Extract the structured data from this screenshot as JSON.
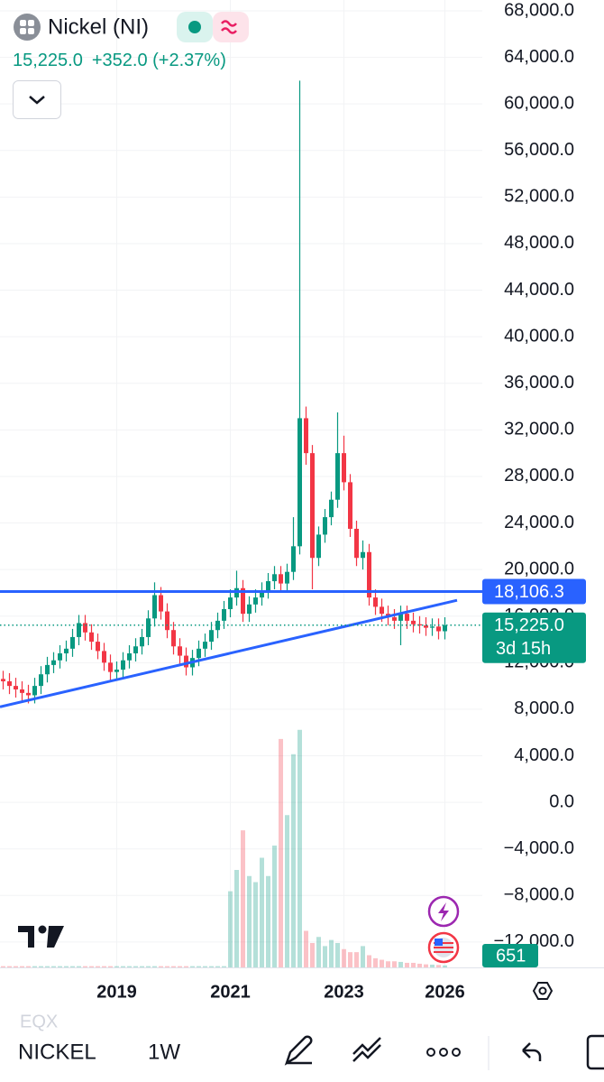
{
  "header": {
    "symbol": "Nickel (NI)",
    "last": "15,225.0",
    "change": "+352.0 (+2.37%)"
  },
  "toolbar": {
    "exchange": "EQX",
    "symbol": "NICKEL",
    "interval": "1W"
  },
  "chart_data": {
    "type": "candlestick",
    "up_color": "#089981",
    "down_color": "#f23645",
    "categories": [
      null,
      null,
      null,
      null,
      null,
      null,
      null,
      null,
      null,
      null,
      null,
      null,
      null,
      null,
      null,
      null,
      null,
      null,
      "2019",
      null,
      null,
      null,
      null,
      null,
      null,
      null,
      null,
      null,
      null,
      null,
      null,
      null,
      null,
      null,
      null,
      null,
      "2021",
      null,
      null,
      null,
      null,
      null,
      null,
      null,
      null,
      null,
      null,
      null,
      null,
      null,
      null,
      null,
      null,
      null,
      "2023",
      null,
      null,
      null,
      null,
      null,
      null,
      null,
      null,
      null,
      null,
      null,
      null,
      null,
      null,
      null,
      "2026"
    ],
    "open": [
      10600,
      10400,
      10000,
      9700,
      9400,
      9200,
      10000,
      11000,
      11800,
      12200,
      12800,
      13200,
      14200,
      15400,
      14600,
      13800,
      13000,
      12000,
      11200,
      11400,
      12200,
      12800,
      13400,
      14200,
      15800,
      17800,
      16400,
      14800,
      13400,
      12600,
      11600,
      12400,
      13200,
      13800,
      14800,
      15600,
      16600,
      17600,
      18400,
      16200,
      17000,
      17600,
      18200,
      19000,
      19600,
      18800,
      19800,
      22000,
      33000,
      30000,
      21000,
      23000,
      24500,
      26000,
      30000,
      27500,
      23500,
      21000,
      21500,
      17600,
      16800,
      16200,
      15900,
      15600,
      16200,
      15600,
      15300,
      15200,
      15000,
      15100,
      14700
    ],
    "high": [
      11300,
      11100,
      10700,
      10400,
      10100,
      10700,
      11700,
      12500,
      12900,
      13500,
      13900,
      14900,
      16100,
      16100,
      15300,
      14500,
      13700,
      12700,
      12100,
      12900,
      13500,
      14100,
      14900,
      16500,
      18900,
      18500,
      17100,
      15500,
      14100,
      13300,
      13100,
      13900,
      14500,
      15500,
      16300,
      17300,
      18300,
      19900,
      19100,
      17700,
      18300,
      18900,
      19700,
      20300,
      20300,
      20500,
      24500,
      62000,
      34000,
      30700,
      23700,
      25200,
      26700,
      33500,
      31500,
      28200,
      24200,
      22500,
      22200,
      18300,
      17500,
      16900,
      16600,
      16900,
      16900,
      16300,
      16000,
      15900,
      15800,
      15800,
      15900
    ],
    "low": [
      9700,
      9300,
      9000,
      8700,
      8500,
      8500,
      9300,
      10300,
      11100,
      11500,
      12100,
      12500,
      13500,
      13900,
      13100,
      12300,
      11300,
      10500,
      10500,
      10700,
      11500,
      12100,
      12700,
      13500,
      15100,
      15700,
      14100,
      12700,
      11900,
      10900,
      10900,
      11700,
      12500,
      13100,
      14100,
      14900,
      15900,
      16900,
      15500,
      15500,
      16300,
      16900,
      17500,
      18300,
      18100,
      18100,
      19100,
      21300,
      29000,
      18300,
      20300,
      22300,
      23800,
      25300,
      26800,
      22800,
      20300,
      20000,
      16900,
      16100,
      15500,
      15200,
      14900,
      13500,
      14900,
      14600,
      14500,
      14300,
      14300,
      14000,
      14000
    ],
    "close": [
      10400,
      10000,
      9700,
      9400,
      9200,
      10000,
      11000,
      11800,
      12200,
      12800,
      13200,
      14200,
      15400,
      14600,
      13800,
      13000,
      12000,
      11200,
      11400,
      12200,
      12800,
      13400,
      14200,
      15800,
      17800,
      16400,
      14800,
      13400,
      12600,
      11600,
      12400,
      13200,
      13800,
      14800,
      15600,
      16600,
      17600,
      18400,
      16200,
      17000,
      17600,
      18200,
      19000,
      19600,
      18800,
      19800,
      22000,
      33000,
      30000,
      21000,
      23000,
      24500,
      26000,
      30000,
      27500,
      23500,
      21000,
      21500,
      17600,
      16800,
      16200,
      15900,
      15600,
      16200,
      15600,
      15300,
      15200,
      15000,
      15100,
      14700,
      15225
    ],
    "volume": {
      "ylim": [
        0,
        80000
      ],
      "values": [
        400,
        400,
        400,
        400,
        400,
        400,
        400,
        400,
        400,
        400,
        400,
        400,
        400,
        400,
        400,
        400,
        400,
        400,
        400,
        400,
        400,
        400,
        400,
        400,
        400,
        400,
        400,
        400,
        400,
        400,
        400,
        400,
        400,
        400,
        400,
        400,
        25000,
        32000,
        45000,
        30000,
        28000,
        36000,
        30000,
        40000,
        75000,
        50000,
        70000,
        78000,
        12000,
        8000,
        10000,
        7000,
        9000,
        8000,
        6000,
        5000,
        5000,
        7000,
        4000,
        3000,
        2500,
        2000,
        2000,
        1800,
        1500,
        1500,
        1200,
        1000,
        900,
        800,
        651
      ]
    },
    "ylim": [
      -14180,
      68930
    ],
    "yticks": [
      {
        "value": 68000,
        "label": "68,000.0"
      },
      {
        "value": 64000,
        "label": "64,000.0"
      },
      {
        "value": 60000,
        "label": "60,000.0"
      },
      {
        "value": 56000,
        "label": "56,000.0"
      },
      {
        "value": 52000,
        "label": "52,000.0"
      },
      {
        "value": 48000,
        "label": "48,000.0"
      },
      {
        "value": 44000,
        "label": "44,000.0"
      },
      {
        "value": 40000,
        "label": "40,000.0"
      },
      {
        "value": 36000,
        "label": "36,000.0"
      },
      {
        "value": 32000,
        "label": "32,000.0"
      },
      {
        "value": 28000,
        "label": "28,000.0"
      },
      {
        "value": 24000,
        "label": "24,000.0"
      },
      {
        "value": 20000,
        "label": "20,000.0"
      },
      {
        "value": 16000,
        "label": "16,000.0"
      },
      {
        "value": 12000,
        "label": "12,000.0"
      },
      {
        "value": 8000,
        "label": "8,000.0"
      },
      {
        "value": 4000,
        "label": "4,000.0"
      },
      {
        "value": 0,
        "label": "0.0"
      },
      {
        "value": -4000,
        "label": "−4,000.0"
      },
      {
        "value": -8000,
        "label": "−8,000.0"
      },
      {
        "value": -12000,
        "label": "−12,000.0"
      }
    ],
    "grid": true,
    "horizontal_line": {
      "value": 18106.3,
      "label": "18,106.3",
      "color": "#2962ff"
    },
    "trend_line": {
      "values": [
        8200,
        17360
      ],
      "color": "#2962ff"
    },
    "last_price": {
      "value": 15225,
      "label": "15,225.0",
      "countdown": "3d 15h"
    }
  }
}
